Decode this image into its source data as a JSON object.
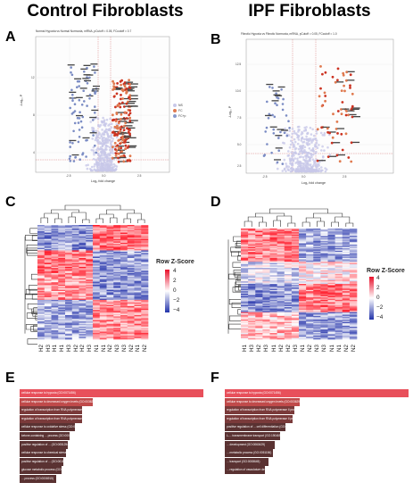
{
  "column_titles": {
    "left": "Control Fibroblasts",
    "right": "IPF Fibroblasts"
  },
  "panels": {
    "A": {
      "letter": "A",
      "title": "Normal Hypoxia vs Normal Normoxia, mRNA, pCutoff = 0.05, FCcutoff = 0.7",
      "xlabel": "Log₂ fold change",
      "ylabel": "-Log₁₀ P",
      "x_ticks": [
        "-2.5",
        "0.0",
        "2.5"
      ],
      "y_ticks": [
        "12",
        "8",
        "4"
      ],
      "legend": [
        "NS",
        "FC",
        "FC+p"
      ],
      "colors": {
        "ns": "#c8c8e8",
        "fc": "#8899cc",
        "sig": "#e07a4f",
        "up": "#cc3322"
      }
    },
    "B": {
      "letter": "B",
      "title": "Fibrotic Hypoxia vs Fibrotic Normoxia, mRNA, pCutoff = 0.05, FCcutoff = 1.0",
      "xlabel": "Log₂ fold change",
      "ylabel": "-Log₁₀ P",
      "x_ticks": [
        "-2.5",
        "0.0",
        "2.5"
      ],
      "y_ticks": [
        "12.5",
        "10.0",
        "7.5",
        "5.0",
        "2.5"
      ]
    },
    "C": {
      "letter": "C",
      "columns": [
        "H2",
        "H3",
        "H1",
        "H1",
        "H3",
        "H2",
        "H2",
        "H3",
        "N1",
        "N1",
        "N2",
        "N3",
        "N3",
        "N2",
        "N1",
        "N2"
      ],
      "zscore_title": "Row Z-Score",
      "zscore_ticks": [
        "4",
        "2",
        "0",
        "−2",
        "−4"
      ]
    },
    "D": {
      "letter": "D",
      "columns": [
        "H1",
        "H3",
        "H2",
        "H3",
        "H1",
        "H2",
        "H2",
        "H3",
        "N1",
        "N2",
        "N3",
        "N3",
        "N1",
        "N1",
        "N2",
        "N2"
      ],
      "zscore_title": "Row Z-Score",
      "zscore_ticks": [
        "4",
        "2",
        "0",
        "−2",
        "−4"
      ]
    },
    "E": {
      "letter": "E",
      "bars": [
        {
          "label": "cellular response to hypoxia (GO:0071456)",
          "value": 1.0
        },
        {
          "label": "cellular response to decreased oxygen levels (GO:0036294)",
          "value": 0.4
        },
        {
          "label": "regulation of transcription from RNA polymerase II promoter in response to hypoxia (GO:0061418)",
          "value": 0.34
        },
        {
          "label": "regulation of transcription from RNA polymerase II promoter in response to stress (GO:0043618)",
          "value": 0.34
        },
        {
          "label": "cellular response to oxidative stress (GO:0034599)",
          "value": 0.3
        },
        {
          "label": "ketone-containing ... process (GO:0006767)",
          "value": 0.27
        },
        {
          "label": "positive regulation of ... (GO:0051254)",
          "value": 0.26
        },
        {
          "label": "cellular response to chemical stress (GO:0062197)",
          "value": 0.25
        },
        {
          "label": "positive regulation of ... (GO:0018903)",
          "value": 0.24
        },
        {
          "label": "glucose metabolic process (GO:0006006)",
          "value": 0.23
        },
        {
          "label": "... process (GO:0006915)",
          "value": 0.2
        }
      ]
    },
    "F": {
      "letter": "F",
      "bars": [
        {
          "label": "cellular response to hypoxia (GO:0071456)",
          "value": 1.0
        },
        {
          "label": "cellular response to decreased oxygen levels (GO:0036294)",
          "value": 0.41
        },
        {
          "label": "regulation of transcription from RNA polymerase II promoter in response to hypoxia (GO:0061418)",
          "value": 0.38
        },
        {
          "label": "regulation of transcription from RNA polymerase II promoter in response to stress (GO:0043618)",
          "value": 0.37
        },
        {
          "label": "positive regulation of ... cell differentiation (GO:0045639)",
          "value": 0.33
        },
        {
          "label": "L-... transmembrane transport (GO:1904659)",
          "value": 0.3
        },
        {
          "label": "... development (GO:0060429)",
          "value": 0.27
        },
        {
          "label": "... metabolic process (GO:0051156)",
          "value": 0.26
        },
        {
          "label": "... transport (GO:0008645)",
          "value": 0.24
        },
        {
          "label": "... regulation of vasculature development (GO:1904018)",
          "value": 0.22
        }
      ],
      "bar_color_top": "#e8505b",
      "bar_color_mid": "#c04a4a",
      "bar_color_low": "#5a3232"
    }
  }
}
